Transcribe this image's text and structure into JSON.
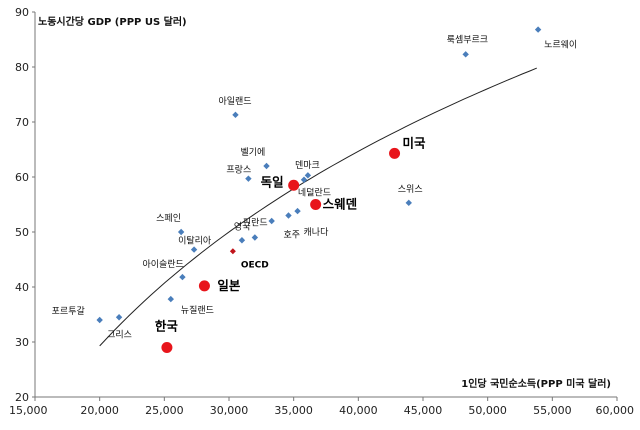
{
  "chart_data": {
    "type": "scatter",
    "xlabel": "1인당 국민순소득(PPP 미국 달러)",
    "ylabel": "노동시간당 GDP (PPP US 달러)",
    "xlim": [
      15000,
      60000
    ],
    "ylim": [
      20,
      90
    ],
    "x_ticks": [
      15000,
      20000,
      25000,
      30000,
      35000,
      40000,
      45000,
      50000,
      55000,
      60000
    ],
    "x_tick_labels": [
      "15,000",
      "20,000",
      "25,000",
      "30,000",
      "35,000",
      "40,000",
      "45,000",
      "50,000",
      "55,000",
      "60,000"
    ],
    "y_ticks": [
      20,
      30,
      40,
      50,
      60,
      70,
      80,
      90
    ],
    "y_tick_labels": [
      "20",
      "30",
      "40",
      "50",
      "60",
      "70",
      "80",
      "90"
    ],
    "grid": false,
    "colors": {
      "marker": "#4a7ebb",
      "highlight": "#e8151b",
      "oecd": "#c0141b",
      "trend": "#222222"
    },
    "points": [
      {
        "x": 20000,
        "y": 34.0,
        "style": "small",
        "label": "포르투갈"
      },
      {
        "x": 21500,
        "y": 34.5,
        "style": "small",
        "label": "그리스"
      },
      {
        "x": 25200,
        "y": 29.0,
        "style": "big",
        "label": "한국"
      },
      {
        "x": 25500,
        "y": 37.8,
        "style": "small",
        "label": "뉴질랜드"
      },
      {
        "x": 26400,
        "y": 41.8,
        "style": "small",
        "label": "아이슬란드"
      },
      {
        "x": 27300,
        "y": 46.8,
        "style": "small",
        "label": "이탈리아"
      },
      {
        "x": 26300,
        "y": 50.0,
        "style": "small",
        "label": "스페인"
      },
      {
        "x": 28100,
        "y": 40.2,
        "style": "big",
        "label": "일본"
      },
      {
        "x": 30300,
        "y": 46.5,
        "style": "oecd",
        "label": "OECD"
      },
      {
        "x": 31000,
        "y": 48.5,
        "style": "small",
        "label": "영국"
      },
      {
        "x": 32000,
        "y": 49.0,
        "style": "small",
        "label": "핀란드"
      },
      {
        "x": 33300,
        "y": 52.0,
        "style": "small",
        "label": ""
      },
      {
        "x": 34600,
        "y": 53.0,
        "style": "small",
        "label": "호주"
      },
      {
        "x": 35300,
        "y": 53.8,
        "style": "small",
        "label": "캐나다"
      },
      {
        "x": 30500,
        "y": 71.3,
        "style": "small",
        "label": "아일랜드"
      },
      {
        "x": 31500,
        "y": 59.7,
        "style": "small",
        "label": "프랑스"
      },
      {
        "x": 32900,
        "y": 62.0,
        "style": "small",
        "label": "벨기에"
      },
      {
        "x": 35000,
        "y": 58.5,
        "style": "big",
        "label": "독일"
      },
      {
        "x": 35800,
        "y": 59.5,
        "style": "small",
        "label": "덴마크"
      },
      {
        "x": 36100,
        "y": 60.3,
        "style": "small",
        "label": "네덜란드"
      },
      {
        "x": 36700,
        "y": 55.0,
        "style": "big",
        "label": "스웨덴"
      },
      {
        "x": 42800,
        "y": 64.3,
        "style": "big",
        "label": "미국"
      },
      {
        "x": 43900,
        "y": 55.3,
        "style": "small",
        "label": "스위스"
      },
      {
        "x": 48300,
        "y": 82.3,
        "style": "small",
        "label": "룩셈부르크"
      },
      {
        "x": 53900,
        "y": 86.8,
        "style": "small",
        "label": "노르웨이"
      }
    ],
    "trend_line": {
      "type": "log",
      "x_from": 20000,
      "x_to": 53800,
      "y_from": 29.3,
      "y_to": 79.8
    }
  }
}
